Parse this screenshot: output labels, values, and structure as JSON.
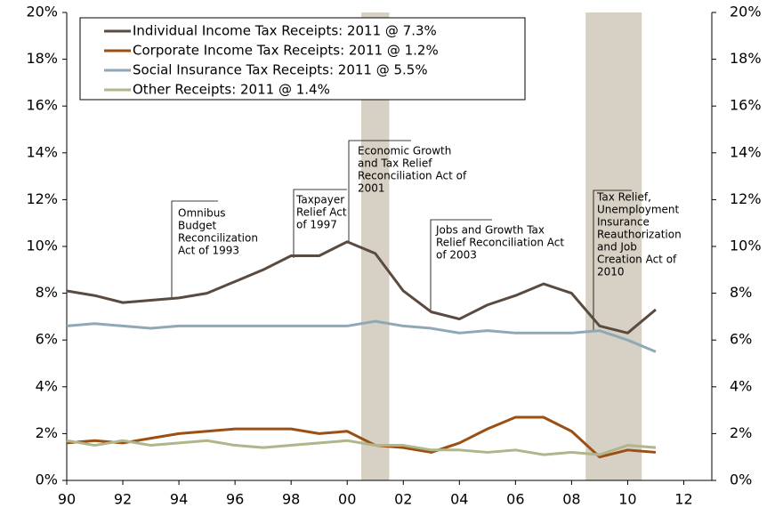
{
  "chart_data": {
    "type": "line",
    "x": [
      1990,
      1991,
      1992,
      1993,
      1994,
      1995,
      1996,
      1997,
      1998,
      1999,
      2000,
      2001,
      2002,
      2003,
      2004,
      2005,
      2006,
      2007,
      2008,
      2009,
      2010,
      2011
    ],
    "series": [
      {
        "name": "Individual Income Tax Receipts: 2011 @ 7.3%",
        "color": "#5a4a3f",
        "values": [
          8.1,
          7.9,
          7.6,
          7.7,
          7.8,
          8.0,
          8.5,
          9.0,
          9.6,
          9.6,
          10.2,
          9.7,
          8.1,
          7.2,
          6.9,
          7.5,
          7.9,
          8.4,
          8.0,
          6.6,
          6.3,
          7.3
        ]
      },
      {
        "name": "Corporate Income Tax Receipts: 2011 @ 1.2%",
        "color": "#9c4f12",
        "values": [
          1.6,
          1.7,
          1.6,
          1.8,
          2.0,
          2.1,
          2.2,
          2.2,
          2.2,
          2.0,
          2.1,
          1.5,
          1.4,
          1.2,
          1.6,
          2.2,
          2.7,
          2.7,
          2.1,
          1.0,
          1.3,
          1.2
        ]
      },
      {
        "name": "Social Insurance Tax Receipts: 2011 @ 5.5%",
        "color": "#8fa8b8",
        "values": [
          6.6,
          6.7,
          6.6,
          6.5,
          6.6,
          6.6,
          6.6,
          6.6,
          6.6,
          6.6,
          6.6,
          6.8,
          6.6,
          6.5,
          6.3,
          6.4,
          6.3,
          6.3,
          6.3,
          6.4,
          6.0,
          5.5
        ]
      },
      {
        "name": "Other Receipts: 2011 @ 1.4%",
        "color": "#b0b58a",
        "values": [
          1.7,
          1.5,
          1.7,
          1.5,
          1.6,
          1.7,
          1.5,
          1.4,
          1.5,
          1.6,
          1.7,
          1.5,
          1.5,
          1.3,
          1.3,
          1.2,
          1.3,
          1.1,
          1.2,
          1.1,
          1.5,
          1.4
        ]
      }
    ],
    "shaded_regions": [
      [
        2000.5,
        2001.5
      ],
      [
        2008.5,
        2010.5
      ]
    ],
    "shade_color": "#d6d1c4",
    "annotations": [
      {
        "lines": [
          "Omnibus",
          "Budget",
          "Reconcilization",
          "Act of 1993"
        ]
      },
      {
        "lines": [
          "Taxpayer",
          "Relief Act",
          "of 1997"
        ]
      },
      {
        "lines": [
          "Economic Growth",
          "and Tax Relief",
          "Reconciliation Act of",
          "2001"
        ]
      },
      {
        "lines": [
          "Jobs and Growth Tax",
          "Relief Reconciliation Act",
          "of 2003"
        ]
      },
      {
        "lines": [
          "Tax Relief,",
          "Unemployment",
          "Insurance",
          "Reauthorization",
          "and Job",
          "Creation Act of",
          "2010"
        ]
      }
    ],
    "xlim": [
      1990,
      2013
    ],
    "xticks": [
      {
        "value": 1990,
        "label": "90"
      },
      {
        "value": 1992,
        "label": "92"
      },
      {
        "value": 1994,
        "label": "94"
      },
      {
        "value": 1996,
        "label": "96"
      },
      {
        "value": 1998,
        "label": "98"
      },
      {
        "value": 2000,
        "label": "00"
      },
      {
        "value": 2002,
        "label": "02"
      },
      {
        "value": 2004,
        "label": "04"
      },
      {
        "value": 2006,
        "label": "06"
      },
      {
        "value": 2008,
        "label": "08"
      },
      {
        "value": 2010,
        "label": "10"
      },
      {
        "value": 2012,
        "label": "12"
      }
    ],
    "ylim": [
      0,
      20
    ],
    "yticks": [
      {
        "value": 0,
        "label": "0%"
      },
      {
        "value": 2,
        "label": "2%"
      },
      {
        "value": 4,
        "label": "4%"
      },
      {
        "value": 6,
        "label": "6%"
      },
      {
        "value": 8,
        "label": "8%"
      },
      {
        "value": 10,
        "label": "10%"
      },
      {
        "value": 12,
        "label": "12%"
      },
      {
        "value": 14,
        "label": "14%"
      },
      {
        "value": 16,
        "label": "16%"
      },
      {
        "value": 18,
        "label": "18%"
      },
      {
        "value": 20,
        "label": "20%"
      }
    ],
    "y2lim": [
      0,
      20
    ],
    "y2ticks": [
      {
        "value": 0,
        "label": "0%"
      },
      {
        "value": 2,
        "label": "2%"
      },
      {
        "value": 4,
        "label": "4%"
      },
      {
        "value": 6,
        "label": "6%"
      },
      {
        "value": 8,
        "label": "8%"
      },
      {
        "value": 10,
        "label": "10%"
      },
      {
        "value": 12,
        "label": "12%"
      },
      {
        "value": 14,
        "label": "14%"
      },
      {
        "value": 16,
        "label": "16%"
      },
      {
        "value": 18,
        "label": "18%"
      },
      {
        "value": 20,
        "label": "20%"
      }
    ]
  }
}
